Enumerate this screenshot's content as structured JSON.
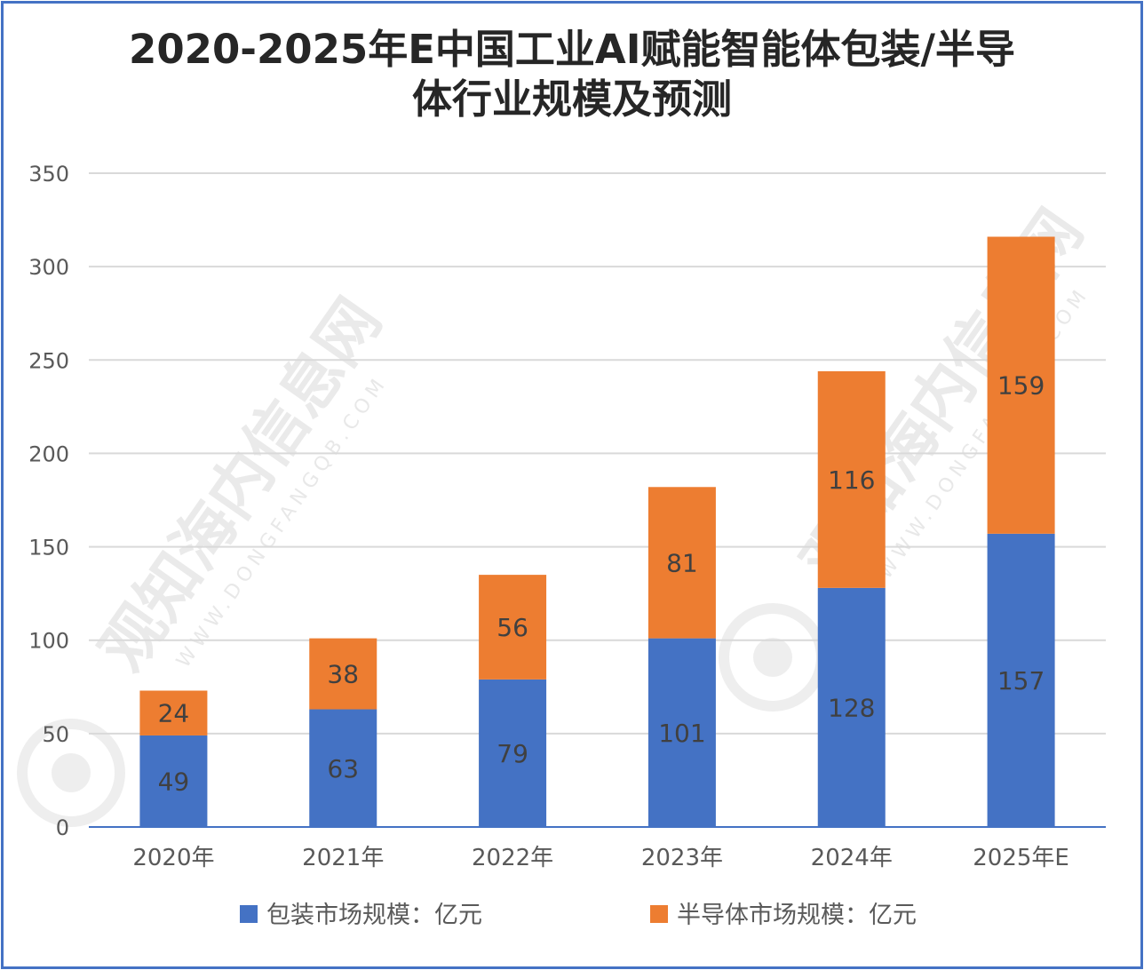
{
  "chart_data": {
    "type": "bar",
    "stacked": true,
    "title_lines": [
      "2020-2025年E中国工业AI赋能智能体包装/半导",
      "体行业规模及预测"
    ],
    "categories": [
      "2020年",
      "2021年",
      "2022年",
      "2023年",
      "2024年",
      "2025年E"
    ],
    "series": [
      {
        "name": "包装市场规模：亿元",
        "color": "#4472c4",
        "values": [
          49,
          63,
          79,
          101,
          128,
          157
        ]
      },
      {
        "name": "半导体市场规模：亿元",
        "color": "#ed7d31",
        "values": [
          24,
          38,
          56,
          81,
          116,
          159
        ]
      }
    ],
    "ylim": [
      0,
      350
    ],
    "yticks": [
      0,
      50,
      100,
      150,
      200,
      250,
      300,
      350
    ],
    "grid": true,
    "legend_position": "bottom"
  },
  "watermark": {
    "text": "观知海内信息网",
    "subtext": "WWW.DONGFANGQB.COM"
  }
}
